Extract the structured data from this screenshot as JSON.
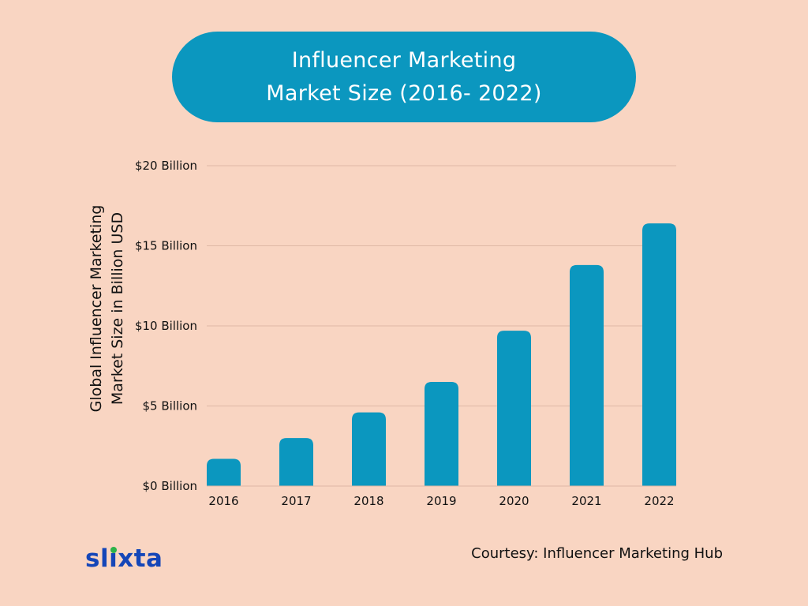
{
  "title": {
    "line1": "Influencer Marketing",
    "line2": "Market Size (2016- 2022)"
  },
  "colors": {
    "background": "#f9d5c2",
    "accent": "#0b97bf",
    "logo_blue": "#1546b8",
    "logo_green": "#2db34a"
  },
  "chart_data": {
    "type": "bar",
    "categories": [
      "2016",
      "2017",
      "2018",
      "2019",
      "2020",
      "2021",
      "2022"
    ],
    "values": [
      1.7,
      3.0,
      4.6,
      6.5,
      9.7,
      13.8,
      16.4
    ],
    "ylabel_line1": "Global Influencer Marketing",
    "ylabel_line2": "Market Size in Billion USD",
    "yticks": [
      {
        "value": 0,
        "label": "$0 Billion"
      },
      {
        "value": 5,
        "label": "$5 Billion"
      },
      {
        "value": 10,
        "label": "$10 Billion"
      },
      {
        "value": 15,
        "label": "$15 Billion"
      },
      {
        "value": 20,
        "label": "$20 Billion"
      }
    ],
    "ylim": [
      0,
      20
    ],
    "grid": true
  },
  "footer": {
    "logo_prefix": "sl",
    "logo_i": "i",
    "logo_suffix": "xta",
    "courtesy": "Courtesy: Influencer Marketing Hub"
  }
}
